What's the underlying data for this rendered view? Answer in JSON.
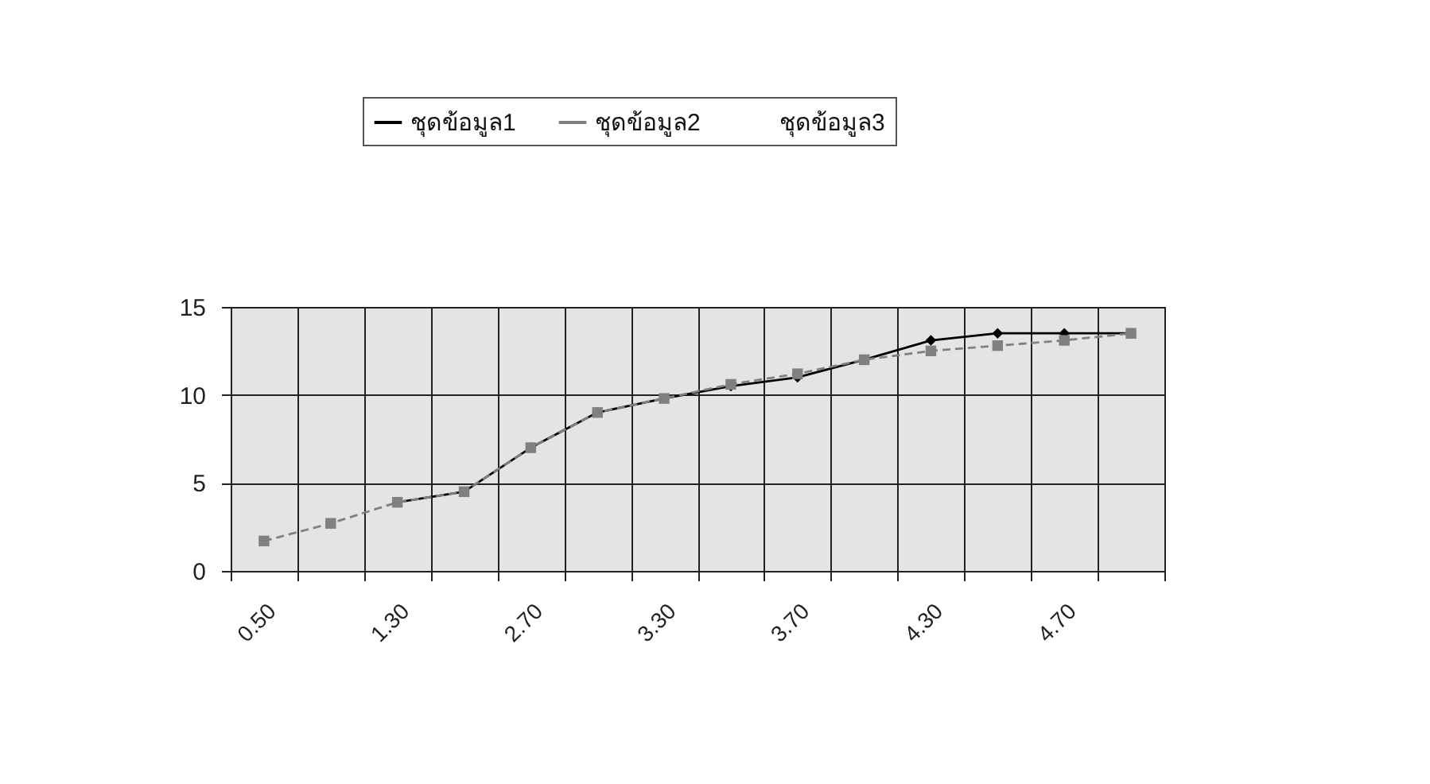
{
  "chart_data": {
    "type": "line",
    "categories": [
      "0.50",
      null,
      "1.30",
      null,
      "2.70",
      null,
      "3.30",
      null,
      "3.70",
      null,
      "4.30",
      null,
      "4.70",
      null
    ],
    "series": [
      {
        "name": "ชุดข้อมูล1",
        "color": "#000000",
        "marker": "diamond",
        "line_style": "solid",
        "values": [
          null,
          null,
          3.9,
          4.5,
          7,
          9,
          9.8,
          10.5,
          11.0,
          12,
          13.1,
          13.5,
          13.5,
          13.5
        ]
      },
      {
        "name": "ชุดข้อมูล2",
        "color": "#808080",
        "marker": "square",
        "line_style": "dashed",
        "values": [
          1.7,
          2.7,
          3.9,
          4.5,
          7,
          9,
          9.8,
          10.6,
          11.2,
          12,
          12.5,
          12.8,
          13.1,
          13.5
        ]
      },
      {
        "name": "ชุดข้อมูล3",
        "values": [
          null,
          null,
          null,
          null,
          null,
          null,
          null,
          null,
          null,
          null,
          null,
          null,
          null,
          null
        ]
      }
    ],
    "ylim": [
      0,
      15
    ],
    "yticks": [
      0,
      5,
      10,
      15
    ],
    "grid": true,
    "legend": "top"
  }
}
